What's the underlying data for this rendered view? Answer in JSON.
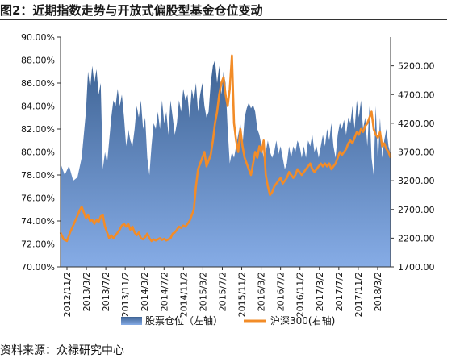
{
  "title": "图2：近期指数走势与开放式偏股型基金仓位变动",
  "source": "资料来源：众禄研究中心",
  "chart_data": {
    "type": "area",
    "x_ticks": [
      "2012/11/2",
      "2013/3/2",
      "2013/7/2",
      "2013/11/2",
      "2014/3/2",
      "2014/7/2",
      "2014/11/2",
      "2015/3/2",
      "2015/7/2",
      "2015/11/2",
      "2016/3/2",
      "2016/7/2",
      "2016/11/2",
      "2017/3/2",
      "2017/7/2",
      "2017/11/2",
      "2018/3/2"
    ],
    "left_axis": {
      "ylim": [
        70,
        90
      ],
      "ticks": [
        "70.00%",
        "72.00%",
        "74.00%",
        "76.00%",
        "78.00%",
        "80.00%",
        "82.00%",
        "84.00%",
        "86.00%",
        "88.00%",
        "90.00%"
      ]
    },
    "right_axis": {
      "ylim": [
        1700,
        5700
      ],
      "ticks": [
        "1700.00",
        "2200.00",
        "2700.00",
        "3200.00",
        "3700.00",
        "4200.00",
        "4700.00",
        "5200.00"
      ]
    },
    "series": [
      {
        "name": "股票仓位（左轴）",
        "axis": "left",
        "type": "area",
        "color": "#5b82b6",
        "points": [
          [
            0,
            79.0
          ],
          [
            0.4,
            78.0
          ],
          [
            0.8,
            78.8
          ],
          [
            1.2,
            77.5
          ],
          [
            1.6,
            77.8
          ],
          [
            2.0,
            79.5
          ],
          [
            2.4,
            83.5
          ],
          [
            2.6,
            87.0
          ],
          [
            2.8,
            85.5
          ],
          [
            3.0,
            87.5
          ],
          [
            3.2,
            86.0
          ],
          [
            3.4,
            87.2
          ],
          [
            3.6,
            85.0
          ],
          [
            3.8,
            86.0
          ],
          [
            4.0,
            78.5
          ],
          [
            4.2,
            80.0
          ],
          [
            4.4,
            79.0
          ],
          [
            4.6,
            81.0
          ],
          [
            4.8,
            83.0
          ],
          [
            5.0,
            84.5
          ],
          [
            5.2,
            84.0
          ],
          [
            5.4,
            85.5
          ],
          [
            5.6,
            84.0
          ],
          [
            5.8,
            85.0
          ],
          [
            6.0,
            83.0
          ],
          [
            6.2,
            80.5
          ],
          [
            6.4,
            82.0
          ],
          [
            6.6,
            81.0
          ],
          [
            6.8,
            80.5
          ],
          [
            7.0,
            82.0
          ],
          [
            7.2,
            84.0
          ],
          [
            7.4,
            83.0
          ],
          [
            7.6,
            84.5
          ],
          [
            7.8,
            82.0
          ],
          [
            8.0,
            83.0
          ],
          [
            8.2,
            79.5
          ],
          [
            8.4,
            78.0
          ],
          [
            8.6,
            80.5
          ],
          [
            8.8,
            82.5
          ],
          [
            9.0,
            82.0
          ],
          [
            9.2,
            83.5
          ],
          [
            9.4,
            82.0
          ],
          [
            9.6,
            84.5
          ],
          [
            9.8,
            82.5
          ],
          [
            10.0,
            83.5
          ],
          [
            10.2,
            81.5
          ],
          [
            10.4,
            84.5
          ],
          [
            10.6,
            83.0
          ],
          [
            10.8,
            81.5
          ],
          [
            11.0,
            82.5
          ],
          [
            11.2,
            84.5
          ],
          [
            11.4,
            83.5
          ],
          [
            11.6,
            85.5
          ],
          [
            11.8,
            84.5
          ],
          [
            12.0,
            85.0
          ],
          [
            12.2,
            83.0
          ],
          [
            12.4,
            85.5
          ],
          [
            12.6,
            84.5
          ],
          [
            12.8,
            86.0
          ],
          [
            13.0,
            83.5
          ],
          [
            13.2,
            85.0
          ],
          [
            13.4,
            86.0
          ],
          [
            13.6,
            84.0
          ],
          [
            13.8,
            83.0
          ],
          [
            14.0,
            83.5
          ],
          [
            14.2,
            86.0
          ],
          [
            14.4,
            87.5
          ],
          [
            14.6,
            88.0
          ],
          [
            14.8,
            86.0
          ],
          [
            15.0,
            87.5
          ],
          [
            15.2,
            85.0
          ],
          [
            15.4,
            87.0
          ],
          [
            15.6,
            86.0
          ],
          [
            15.8,
            82.0
          ],
          [
            16.0,
            79.0
          ],
          [
            16.2,
            80.0
          ],
          [
            16.4,
            79.5
          ],
          [
            16.6,
            80.5
          ],
          [
            16.8,
            81.5
          ],
          [
            17.0,
            82.5
          ],
          [
            17.2,
            80.5
          ],
          [
            17.4,
            83.0
          ],
          [
            17.6,
            83.8
          ],
          [
            17.8,
            84.3
          ],
          [
            18.0,
            83.8
          ],
          [
            18.2,
            84.1
          ],
          [
            18.4,
            83.5
          ],
          [
            18.6,
            82.0
          ],
          [
            18.8,
            81.5
          ],
          [
            19.0,
            80.5
          ],
          [
            19.2,
            79.5
          ],
          [
            19.4,
            80.0
          ],
          [
            19.6,
            81.0
          ],
          [
            19.8,
            80.0
          ],
          [
            20.0,
            79.5
          ],
          [
            20.2,
            80.0
          ],
          [
            20.4,
            81.0
          ],
          [
            20.6,
            79.8
          ],
          [
            20.8,
            80.5
          ],
          [
            21.0,
            79.5
          ],
          [
            21.2,
            78.5
          ],
          [
            21.4,
            79.0
          ],
          [
            21.6,
            80.5
          ],
          [
            21.8,
            79.5
          ],
          [
            22.0,
            80.5
          ],
          [
            22.2,
            80.0
          ],
          [
            22.4,
            81.0
          ],
          [
            22.6,
            80.5
          ],
          [
            22.8,
            79.5
          ],
          [
            23.0,
            80.5
          ],
          [
            23.2,
            79.5
          ],
          [
            23.4,
            81.0
          ],
          [
            23.6,
            80.5
          ],
          [
            23.8,
            81.5
          ],
          [
            24.0,
            80.0
          ],
          [
            24.2,
            80.5
          ],
          [
            24.4,
            79.5
          ],
          [
            24.6,
            80.5
          ],
          [
            24.8,
            81.5
          ],
          [
            25.0,
            80.5
          ],
          [
            25.2,
            82.0
          ],
          [
            25.4,
            81.0
          ],
          [
            25.6,
            82.5
          ],
          [
            25.8,
            80.5
          ],
          [
            26.0,
            79.5
          ],
          [
            26.2,
            81.5
          ],
          [
            26.4,
            82.5
          ],
          [
            26.6,
            82.0
          ],
          [
            26.8,
            82.8
          ],
          [
            27.0,
            81.5
          ],
          [
            27.2,
            83.0
          ],
          [
            27.4,
            82.5
          ],
          [
            27.6,
            84.0
          ],
          [
            27.8,
            82.0
          ],
          [
            28.0,
            84.5
          ],
          [
            28.2,
            83.0
          ],
          [
            28.4,
            84.5
          ],
          [
            28.6,
            82.0
          ],
          [
            28.8,
            83.0
          ],
          [
            29.0,
            80.5
          ],
          [
            29.2,
            84.0
          ],
          [
            29.4,
            79.5
          ],
          [
            29.6,
            78.0
          ],
          [
            29.8,
            84.0
          ],
          [
            30.0,
            79.0
          ],
          [
            30.2,
            83.0
          ],
          [
            30.4,
            79.5
          ],
          [
            30.6,
            81.0
          ],
          [
            30.8,
            82.0
          ],
          [
            31.0,
            80.5
          ],
          [
            31.2,
            79.8
          ]
        ]
      },
      {
        "name": "沪深300(右轴)",
        "axis": "right",
        "type": "line",
        "color": "#f28c28",
        "points": [
          [
            0,
            2300
          ],
          [
            0.3,
            2180
          ],
          [
            0.6,
            2150
          ],
          [
            0.9,
            2300
          ],
          [
            1.2,
            2420
          ],
          [
            1.5,
            2550
          ],
          [
            1.8,
            2680
          ],
          [
            2.0,
            2750
          ],
          [
            2.2,
            2650
          ],
          [
            2.4,
            2550
          ],
          [
            2.6,
            2600
          ],
          [
            2.8,
            2500
          ],
          [
            3.0,
            2520
          ],
          [
            3.2,
            2450
          ],
          [
            3.4,
            2520
          ],
          [
            3.6,
            2480
          ],
          [
            3.8,
            2580
          ],
          [
            4.0,
            2600
          ],
          [
            4.2,
            2400
          ],
          [
            4.4,
            2300
          ],
          [
            4.6,
            2200
          ],
          [
            4.8,
            2250
          ],
          [
            5.0,
            2200
          ],
          [
            5.2,
            2250
          ],
          [
            5.4,
            2300
          ],
          [
            5.6,
            2350
          ],
          [
            5.8,
            2420
          ],
          [
            6.0,
            2450
          ],
          [
            6.2,
            2400
          ],
          [
            6.4,
            2450
          ],
          [
            6.6,
            2350
          ],
          [
            6.8,
            2400
          ],
          [
            7.0,
            2300
          ],
          [
            7.2,
            2250
          ],
          [
            7.4,
            2300
          ],
          [
            7.6,
            2200
          ],
          [
            7.8,
            2180
          ],
          [
            8.0,
            2220
          ],
          [
            8.2,
            2280
          ],
          [
            8.4,
            2200
          ],
          [
            8.6,
            2150
          ],
          [
            8.8,
            2180
          ],
          [
            9.0,
            2160
          ],
          [
            9.2,
            2180
          ],
          [
            9.4,
            2200
          ],
          [
            9.6,
            2170
          ],
          [
            9.8,
            2190
          ],
          [
            10.0,
            2160
          ],
          [
            10.2,
            2180
          ],
          [
            10.4,
            2200
          ],
          [
            10.6,
            2280
          ],
          [
            10.8,
            2300
          ],
          [
            11.0,
            2350
          ],
          [
            11.2,
            2400
          ],
          [
            11.4,
            2380
          ],
          [
            11.6,
            2420
          ],
          [
            11.8,
            2400
          ],
          [
            12.0,
            2450
          ],
          [
            12.2,
            2500
          ],
          [
            12.4,
            2600
          ],
          [
            12.6,
            2700
          ],
          [
            12.8,
            3100
          ],
          [
            13.0,
            3400
          ],
          [
            13.2,
            3500
          ],
          [
            13.4,
            3600
          ],
          [
            13.6,
            3700
          ],
          [
            13.8,
            3450
          ],
          [
            14.0,
            3550
          ],
          [
            14.2,
            3650
          ],
          [
            14.4,
            3900
          ],
          [
            14.6,
            4200
          ],
          [
            14.8,
            4400
          ],
          [
            15.0,
            4700
          ],
          [
            15.2,
            4900
          ],
          [
            15.4,
            5000
          ],
          [
            15.6,
            4700
          ],
          [
            15.8,
            4500
          ],
          [
            16.0,
            4800
          ],
          [
            16.2,
            5380
          ],
          [
            16.4,
            4200
          ],
          [
            16.6,
            3900
          ],
          [
            16.8,
            3700
          ],
          [
            17.0,
            4100
          ],
          [
            17.2,
            3800
          ],
          [
            17.4,
            3600
          ],
          [
            17.6,
            3500
          ],
          [
            17.8,
            3400
          ],
          [
            18.0,
            3300
          ],
          [
            18.2,
            3500
          ],
          [
            18.4,
            3700
          ],
          [
            18.6,
            3600
          ],
          [
            18.8,
            3800
          ],
          [
            19.0,
            3700
          ],
          [
            19.2,
            3900
          ],
          [
            19.4,
            3300
          ],
          [
            19.6,
            3100
          ],
          [
            19.8,
            2950
          ],
          [
            20.0,
            3000
          ],
          [
            20.2,
            3100
          ],
          [
            20.4,
            3150
          ],
          [
            20.6,
            3200
          ],
          [
            20.8,
            3250
          ],
          [
            21.0,
            3150
          ],
          [
            21.2,
            3200
          ],
          [
            21.4,
            3250
          ],
          [
            21.6,
            3350
          ],
          [
            21.8,
            3300
          ],
          [
            22.0,
            3250
          ],
          [
            22.2,
            3300
          ],
          [
            22.4,
            3400
          ],
          [
            22.6,
            3350
          ],
          [
            22.8,
            3300
          ],
          [
            23.0,
            3350
          ],
          [
            23.2,
            3400
          ],
          [
            23.4,
            3450
          ],
          [
            23.6,
            3500
          ],
          [
            23.8,
            3400
          ],
          [
            24.0,
            3350
          ],
          [
            24.2,
            3400
          ],
          [
            24.4,
            3450
          ],
          [
            24.6,
            3500
          ],
          [
            24.8,
            3450
          ],
          [
            25.0,
            3500
          ],
          [
            25.2,
            3450
          ],
          [
            25.4,
            3500
          ],
          [
            25.6,
            3400
          ],
          [
            25.8,
            3450
          ],
          [
            26.0,
            3500
          ],
          [
            26.2,
            3600
          ],
          [
            26.4,
            3700
          ],
          [
            26.6,
            3650
          ],
          [
            26.8,
            3700
          ],
          [
            27.0,
            3750
          ],
          [
            27.2,
            3850
          ],
          [
            27.4,
            3900
          ],
          [
            27.6,
            3850
          ],
          [
            27.8,
            3950
          ],
          [
            28.0,
            4050
          ],
          [
            28.2,
            4000
          ],
          [
            28.4,
            4100
          ],
          [
            28.6,
            4050
          ],
          [
            28.8,
            4150
          ],
          [
            29.0,
            4200
          ],
          [
            29.2,
            4300
          ],
          [
            29.4,
            4400
          ],
          [
            29.6,
            4100
          ],
          [
            29.8,
            4000
          ],
          [
            30.0,
            3950
          ],
          [
            30.2,
            4050
          ],
          [
            30.4,
            3800
          ],
          [
            30.6,
            3850
          ],
          [
            30.8,
            3750
          ],
          [
            31.0,
            3700
          ],
          [
            31.2,
            3600
          ]
        ]
      }
    ],
    "legend": [
      "股票仓位（左轴）",
      "沪深300(右轴)"
    ],
    "legend_position": "bottom",
    "grid": false
  }
}
